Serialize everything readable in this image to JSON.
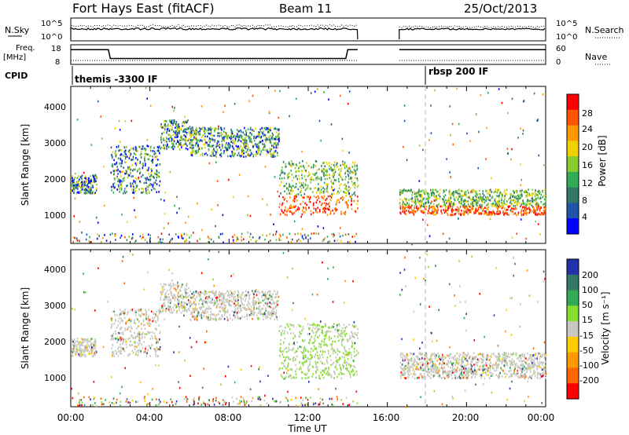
{
  "header": {
    "station": "Fort Hays East (fitACF)",
    "beam": "Beam 11",
    "date": "25/Oct/2013"
  },
  "top_panels": {
    "nsky_label": "N.Sky",
    "nsky_ticks": [
      "10^5",
      "10^0"
    ],
    "nsearch_label": "N.Search",
    "nsearch_ticks": [
      "10^5",
      "10^0"
    ],
    "freq_label": "Freq.",
    "freq_unit": "[MHz]",
    "freq_ticks": [
      "18",
      "8"
    ],
    "nave_label": "Nave",
    "nave_ticks": [
      "60",
      "0"
    ],
    "cpid_label": "CPID",
    "cpid_entries": [
      "themis -3300 IF",
      "rbsp 200 IF"
    ]
  },
  "colorbars": {
    "power": {
      "label": "Power [dB]",
      "ticks": [
        "28",
        "24",
        "20",
        "16",
        "12",
        "8",
        "4"
      ],
      "colors": [
        "#ff0000",
        "#ff5500",
        "#ff9900",
        "#f0d000",
        "#88cc33",
        "#33aa55",
        "#337766",
        "#2255aa",
        "#0000ff"
      ]
    },
    "velocity": {
      "label": "Velocity [m s⁻¹]",
      "ticks": [
        "200",
        "100",
        "50",
        "15",
        "-15",
        "-50",
        "-100",
        "-200"
      ],
      "colors": [
        "#2233aa",
        "#337766",
        "#33aa55",
        "#88dd33",
        "#c8c8c0",
        "#ffcc00",
        "#ff9900",
        "#ff6600",
        "#ff0000"
      ]
    }
  },
  "chart_data": [
    {
      "type": "line",
      "name": "Frequency",
      "x": [
        0,
        1.9,
        2.0,
        13.9,
        14.0,
        14.5,
        16.6,
        24.0
      ],
      "y": [
        15.5,
        15.5,
        11,
        11,
        15.5,
        15.5,
        15.5,
        15.5
      ],
      "ylim": [
        8,
        18
      ]
    },
    {
      "type": "heatmap",
      "panel": "power",
      "ylabel": "Slant Range [km]",
      "yticks": [
        "4000",
        "3000",
        "2000",
        "1000"
      ],
      "ylim": [
        200,
        4500
      ],
      "xlim": [
        0,
        24
      ],
      "echo_bands": [
        {
          "x": [
            0,
            1.3
          ],
          "y": [
            1600,
            2100
          ]
        },
        {
          "x": [
            2.0,
            4.5
          ],
          "y": [
            1600,
            2900
          ]
        },
        {
          "x": [
            4.5,
            6.0
          ],
          "y": [
            2800,
            3600
          ]
        },
        {
          "x": [
            6.0,
            10.5
          ],
          "y": [
            2600,
            3400
          ]
        },
        {
          "x": [
            10.5,
            14.5
          ],
          "y": [
            1000,
            2500
          ]
        },
        {
          "x": [
            16.6,
            24.0
          ],
          "y": [
            1000,
            1700
          ]
        }
      ]
    },
    {
      "type": "heatmap",
      "panel": "velocity",
      "xlabel": "Time UT",
      "ylabel": "Slant Range [km]",
      "xticks": [
        "00:00",
        "04:00",
        "08:00",
        "12:00",
        "16:00",
        "20:00",
        "00:00"
      ],
      "yticks": [
        "4000",
        "3000",
        "2000",
        "1000"
      ],
      "ylim": [
        200,
        4500
      ],
      "xlim": [
        0,
        24
      ]
    }
  ]
}
